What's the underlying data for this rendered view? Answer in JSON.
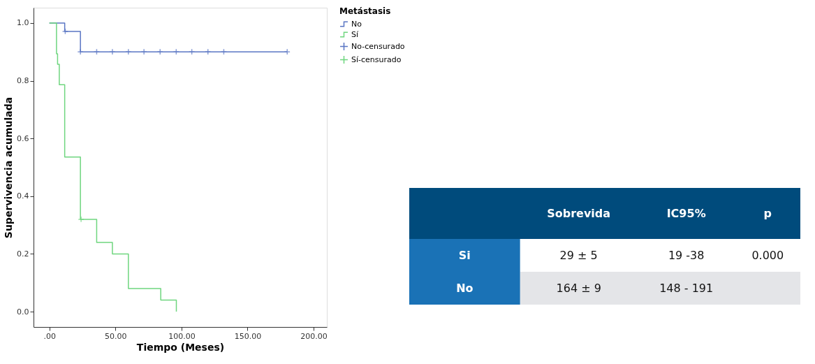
{
  "chart_data": [
    {
      "type": "step",
      "xlabel": "Tiempo (Meses)",
      "ylabel": "Supervivencia acumulada",
      "legend_title": "Metástasis",
      "legend": "top right",
      "grid": false,
      "xlim": [
        -12,
        210
      ],
      "ylim": [
        -0.053,
        1.053
      ],
      "xticks": [
        {
          "value": 0,
          "label": ".00"
        },
        {
          "value": 50,
          "label": "50.00"
        },
        {
          "value": 100,
          "label": "100.00"
        },
        {
          "value": 150,
          "label": "150.00"
        },
        {
          "value": 200,
          "label": "200.00"
        }
      ],
      "yticks": [
        {
          "value": 0,
          "label": "0.0"
        },
        0.2,
        0.4,
        0.6,
        0.8,
        {
          "value": 1,
          "label": "1.0"
        }
      ],
      "series": [
        {
          "name": "No",
          "type": "step",
          "color": "#5a76c4",
          "x": [
            0,
            11.6,
            23.5,
            180
          ],
          "values": [
            1.0,
            0.971,
            0.9,
            0.9
          ]
        },
        {
          "name": "Sí",
          "type": "step",
          "color": "#6fd67f",
          "x": [
            0,
            5.4,
            6.2,
            7.5,
            11.6,
            23.5,
            35.8,
            47.7,
            59.8,
            84.3,
            96.1
          ],
          "values": [
            1.0,
            0.893,
            0.857,
            0.786,
            0.536,
            0.32,
            0.24,
            0.2,
            0.08,
            0.04,
            0.0
          ]
        },
        {
          "name": "No-censurado",
          "type": "scatter",
          "marker": "cross",
          "color": "#5a76c4",
          "x": [
            12,
            23.5,
            35.8,
            47.7,
            59.8,
            71.6,
            83.8,
            96,
            107.8,
            120,
            132,
            180
          ],
          "values": [
            0.971,
            0.9,
            0.9,
            0.9,
            0.9,
            0.9,
            0.9,
            0.9,
            0.9,
            0.9,
            0.9,
            0.9
          ]
        },
        {
          "name": "Sí-censurado",
          "type": "scatter",
          "marker": "cross",
          "color": "#6fd67f",
          "x": [
            24
          ],
          "values": [
            0.32
          ]
        }
      ]
    },
    {
      "type": "other",
      "annotations": [
        "Sobrevida",
        "IC95%",
        "p",
        "Si",
        "29 ± 5",
        "19 -38",
        "0.000",
        "No",
        "164 ± 9",
        "148 - 191"
      ]
    }
  ]
}
